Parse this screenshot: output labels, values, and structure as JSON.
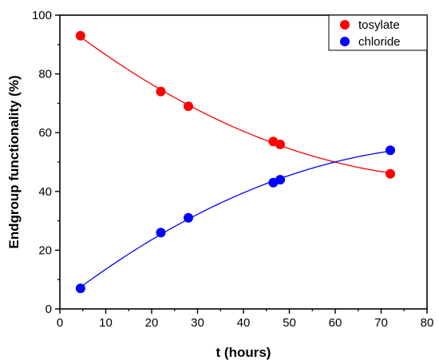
{
  "chart_data": {
    "type": "scatter",
    "title": "",
    "xlabel": "t (hours)",
    "ylabel": "Endgroup functionality (%)",
    "xlim": [
      0,
      80
    ],
    "ylim": [
      0,
      100
    ],
    "x_ticks": [
      0,
      10,
      20,
      30,
      40,
      50,
      60,
      70,
      80
    ],
    "y_ticks": [
      0,
      20,
      40,
      60,
      80,
      100
    ],
    "grid": false,
    "legend_position": "top-right",
    "series": [
      {
        "name": "tosylate",
        "color": "#ff0000",
        "x": [
          4.5,
          22,
          28,
          46.5,
          48,
          72
        ],
        "y": [
          93,
          74,
          69,
          57,
          56,
          46
        ],
        "fit_curve": true
      },
      {
        "name": "chloride",
        "color": "#0000ff",
        "x": [
          4.5,
          22,
          28,
          46.5,
          48,
          72
        ],
        "y": [
          7,
          26,
          31,
          43,
          44,
          54
        ],
        "fit_curve": true
      }
    ]
  }
}
